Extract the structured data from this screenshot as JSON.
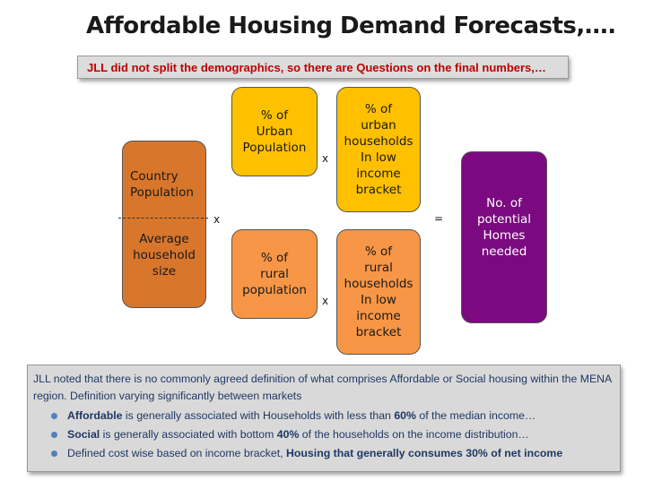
{
  "title": "Affordable Housing Demand Forecasts,….",
  "subtitle": "JLL did not split the demographics, so there are Questions on the final numbers,…",
  "diagram": {
    "country_box": {
      "top_lines": [
        "Country",
        "Population"
      ],
      "bottom_lines": [
        "Average",
        "household",
        "size"
      ],
      "color": "#d8762c"
    },
    "urban_pop_box": {
      "lines": [
        "% of",
        "Urban",
        "Population"
      ],
      "color": "#ffc000"
    },
    "rural_pop_box": {
      "lines": [
        "% of",
        "rural",
        "population"
      ],
      "color": "#f79646"
    },
    "urban_households_box": {
      "lines": [
        "% of",
        "urban",
        "households",
        "In low",
        "income",
        "bracket"
      ],
      "color": "#ffc000"
    },
    "rural_households_box": {
      "lines": [
        "% of",
        "rural",
        "households",
        "In low",
        "income",
        "bracket"
      ],
      "color": "#f79646"
    },
    "result_box": {
      "lines": [
        "No. of",
        "potential",
        "Homes",
        "needed"
      ],
      "color": "#7b0a80"
    },
    "operators": {
      "times": "x",
      "equals": "="
    }
  },
  "notes": {
    "intro": "JLL noted that there is no commonly agreed definition of what comprises Affordable or Social housing within the MENA region. Definition varying significantly between markets",
    "bullets": [
      {
        "bold1": "Affordable",
        "text1": " is generally associated with Households with less than ",
        "bold2": "60%",
        "text2": " of the median income…"
      },
      {
        "bold1": "Social",
        "text1": " is generally associated with bottom ",
        "bold2": "40%",
        "text2": " of the households on the income distribution…"
      },
      {
        "bold1": "",
        "text1": "Defined cost wise based on income bracket, ",
        "bold2": "Housing that generally consumes 30% of net income",
        "text2": ""
      }
    ]
  }
}
